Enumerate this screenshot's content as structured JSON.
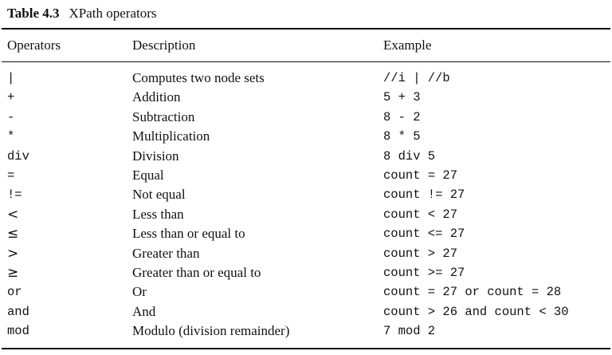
{
  "caption": {
    "number": "Table 4.3",
    "title": "XPath operators"
  },
  "header": {
    "operators": "Operators",
    "description": "Description",
    "example": "Example"
  },
  "rows": [
    {
      "operator": "|",
      "description": "Computes two node sets",
      "example": "//i | //b"
    },
    {
      "operator": "+",
      "description": "Addition",
      "example": "5 + 3"
    },
    {
      "operator": "-",
      "description": "Subtraction",
      "example": "8 - 2"
    },
    {
      "operator": "*",
      "description": "Multiplication",
      "example": "8 * 5"
    },
    {
      "operator": "div",
      "description": "Division",
      "example": "8 div 5"
    },
    {
      "operator": "=",
      "description": "Equal",
      "example": "count = 27"
    },
    {
      "operator": "!=",
      "description": "Not equal",
      "example": "count != 27"
    },
    {
      "operator": "<",
      "description": "Less than",
      "example": "count < 27"
    },
    {
      "operator": "≤",
      "description": "Less than or equal to",
      "example": "count <= 27"
    },
    {
      "operator": ">",
      "description": "Greater than",
      "example": "count > 27"
    },
    {
      "operator": "≥",
      "description": "Greater than or equal to",
      "example": "count >= 27"
    },
    {
      "operator": "or",
      "description": "Or",
      "example": "count = 27 or count = 28"
    },
    {
      "operator": "and",
      "description": "And",
      "example": "count > 26 and count < 30"
    },
    {
      "operator": "mod",
      "description": "Modulo (division remainder)",
      "example": "7 mod 2"
    }
  ]
}
